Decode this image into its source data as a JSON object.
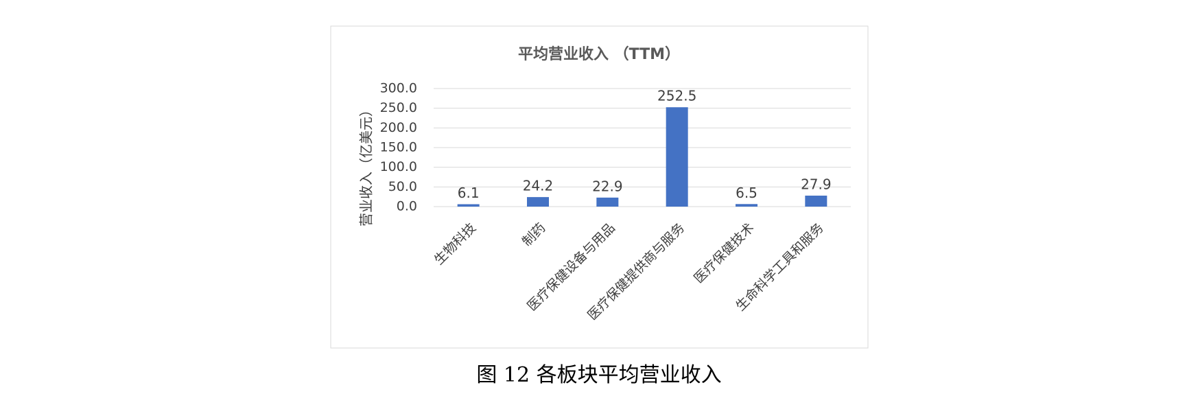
{
  "chart_data": {
    "type": "bar",
    "title": "平均营业收入 （TTM）",
    "y_label": "营业收入（亿美元）",
    "categories": [
      "生物科技",
      "制药",
      "医疗保健设备与用品",
      "医疗保健提供商与服务",
      "医疗保健技术",
      "生命科学工具和服务"
    ],
    "values": [
      6.1,
      24.2,
      22.9,
      252.5,
      6.5,
      27.9
    ],
    "color": "#4472c4",
    "ylim": [
      0,
      300
    ],
    "yticks": [
      {
        "value": 0,
        "label": "0.0"
      },
      {
        "value": 50,
        "label": "50.0"
      },
      {
        "value": 100,
        "label": "100.0"
      },
      {
        "value": 150,
        "label": "150.0"
      },
      {
        "value": 200,
        "label": "200.0"
      },
      {
        "value": 250,
        "label": "250.0"
      },
      {
        "value": 300,
        "label": "300.0"
      }
    ],
    "grid": true
  },
  "caption": "图 12  各板块平均营业收入"
}
